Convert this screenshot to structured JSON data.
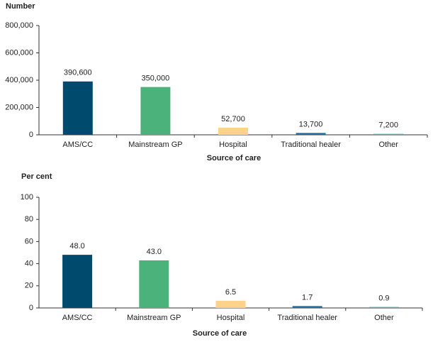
{
  "chart_data": [
    {
      "type": "bar",
      "y_label": "Number",
      "x_label": "Source of care",
      "categories": [
        "AMS/CC",
        "Mainstream GP",
        "Hospital",
        "Traditional healer",
        "Other"
      ],
      "values": [
        390600,
        350000,
        52700,
        13700,
        7200
      ],
      "value_labels": [
        "390,600",
        "350,000",
        "52,700",
        "13,700",
        "7,200"
      ],
      "colors": [
        "#004a6e",
        "#4cb27b",
        "#fdd38c",
        "#1e6ea6",
        "#4bb3a0"
      ],
      "ylim": [
        0,
        800000
      ],
      "yticks": [
        0,
        {
          "value": 200000,
          "label": "200,000"
        },
        {
          "value": 400000,
          "label": "400,000"
        },
        {
          "value": 600000,
          "label": "600,000"
        },
        {
          "value": 800000,
          "label": "800,000"
        }
      ],
      "grid": false
    },
    {
      "type": "bar",
      "y_label": "Per cent",
      "x_label": "Source of care",
      "categories": [
        "AMS/CC",
        "Mainstream GP",
        "Hospital",
        "Traditional healer",
        "Other"
      ],
      "values": [
        48.0,
        43.0,
        6.5,
        1.7,
        0.9
      ],
      "value_labels": [
        "48.0",
        "43.0",
        "6.5",
        "1.7",
        "0.9"
      ],
      "colors": [
        "#004a6e",
        "#4cb27b",
        "#fdd38c",
        "#1e6ea6",
        "#4bb3a0"
      ],
      "ylim": [
        0,
        100
      ],
      "yticks": [
        0,
        20,
        40,
        60,
        80,
        100
      ],
      "grid": false
    }
  ]
}
